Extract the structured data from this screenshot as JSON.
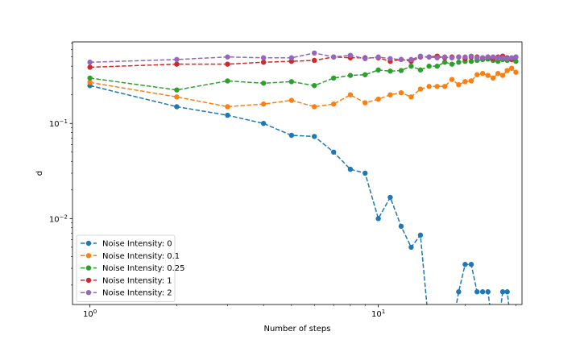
{
  "chart_data": {
    "type": "line",
    "title": "",
    "xlabel": "Number of steps",
    "ylabel": "d",
    "xscale": "log",
    "yscale": "log",
    "xlim": [
      0.87,
      31.5
    ],
    "ylim": [
      0.00125,
      0.72
    ],
    "grid": false,
    "legend_position": "lower-left",
    "x_ticks": [
      {
        "value": 1,
        "base": "10",
        "exp": "0"
      },
      {
        "value": 10,
        "base": "10",
        "exp": "1"
      }
    ],
    "y_ticks": [
      {
        "value": 0.01,
        "base": "10",
        "exp": "−2"
      },
      {
        "value": 0.1,
        "base": "10",
        "exp": "−1"
      }
    ],
    "series": [
      {
        "name": "Noise Intensity: 0",
        "color": "#1f77b4",
        "x": [
          1,
          2,
          3,
          4,
          5,
          6,
          7,
          8,
          9,
          10,
          11,
          12,
          13,
          14,
          15,
          16,
          17,
          18,
          19,
          20,
          21,
          22,
          23,
          24,
          25,
          26,
          27,
          28,
          29,
          30
        ],
        "y": [
          0.25,
          0.15,
          0.122,
          0.1,
          0.075,
          0.073,
          0.05,
          0.033,
          0.03,
          0.01,
          0.0167,
          0.0083,
          0.005,
          0.0067,
          0,
          0,
          0,
          0,
          0.0017,
          0.0033,
          0.0033,
          0.0017,
          0.0017,
          0.0017,
          0,
          0,
          0.0017,
          0.0017,
          0,
          0
        ]
      },
      {
        "name": "Noise Intensity: 0.1",
        "color": "#ff7f0e",
        "x": [
          1,
          2,
          3,
          4,
          5,
          6,
          7,
          8,
          9,
          10,
          11,
          12,
          13,
          14,
          15,
          16,
          17,
          18,
          19,
          20,
          21,
          22,
          23,
          24,
          25,
          26,
          27,
          28,
          29,
          30
        ],
        "y": [
          0.27,
          0.19,
          0.15,
          0.16,
          0.175,
          0.15,
          0.16,
          0.2,
          0.165,
          0.18,
          0.2,
          0.21,
          0.19,
          0.23,
          0.245,
          0.245,
          0.245,
          0.29,
          0.255,
          0.275,
          0.28,
          0.325,
          0.335,
          0.32,
          0.3,
          0.335,
          0.32,
          0.36,
          0.38,
          0.345
        ]
      },
      {
        "name": "Noise Intensity: 0.25",
        "color": "#2ca02c",
        "x": [
          1,
          2,
          3,
          4,
          5,
          6,
          7,
          8,
          9,
          10,
          11,
          12,
          13,
          14,
          15,
          16,
          17,
          18,
          19,
          20,
          21,
          22,
          23,
          24,
          25,
          26,
          27,
          28,
          29,
          30
        ],
        "y": [
          0.3,
          0.225,
          0.28,
          0.265,
          0.275,
          0.25,
          0.3,
          0.32,
          0.325,
          0.365,
          0.355,
          0.36,
          0.4,
          0.365,
          0.4,
          0.4,
          0.44,
          0.42,
          0.44,
          0.45,
          0.45,
          0.46,
          0.47,
          0.475,
          0.46,
          0.45,
          0.47,
          0.46,
          0.47,
          0.45
        ]
      },
      {
        "name": "Noise Intensity: 1",
        "color": "#d62728",
        "x": [
          1,
          2,
          3,
          4,
          5,
          6,
          7,
          8,
          9,
          10,
          11,
          12,
          13,
          14,
          15,
          16,
          17,
          18,
          19,
          20,
          21,
          22,
          23,
          24,
          25,
          26,
          27,
          28,
          29,
          30
        ],
        "y": [
          0.39,
          0.42,
          0.42,
          0.44,
          0.45,
          0.46,
          0.5,
          0.49,
          0.49,
          0.49,
          0.45,
          0.47,
          0.45,
          0.5,
          0.5,
          0.51,
          0.49,
          0.5,
          0.5,
          0.48,
          0.5,
          0.5,
          0.49,
          0.5,
          0.48,
          0.5,
          0.51,
          0.49,
          0.47,
          0.5
        ]
      },
      {
        "name": "Noise Intensity: 2",
        "color": "#9467bd",
        "x": [
          1,
          2,
          3,
          4,
          5,
          6,
          7,
          8,
          9,
          10,
          11,
          12,
          13,
          14,
          15,
          16,
          17,
          18,
          19,
          20,
          21,
          22,
          23,
          24,
          25,
          26,
          27,
          28,
          29,
          30
        ],
        "y": [
          0.44,
          0.47,
          0.5,
          0.49,
          0.49,
          0.55,
          0.5,
          0.52,
          0.48,
          0.5,
          0.48,
          0.47,
          0.47,
          0.51,
          0.5,
          0.49,
          0.5,
          0.49,
          0.5,
          0.5,
          0.51,
          0.49,
          0.49,
          0.5,
          0.5,
          0.49,
          0.49,
          0.48,
          0.49,
          0.5
        ]
      }
    ]
  }
}
